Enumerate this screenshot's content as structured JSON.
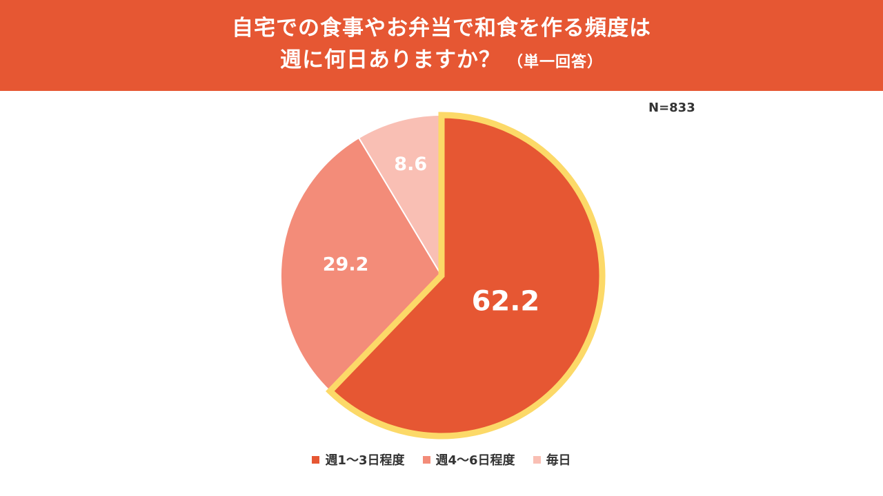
{
  "header": {
    "title_line1": "自宅での食事やお弁当で和食を作る頻度は",
    "title_line2": "週に何日ありますか？",
    "title_note": "（単一回答）",
    "background_color": "#e65733"
  },
  "sample_size": "N=833",
  "chart_data": {
    "type": "pie",
    "start_angle_deg": 0,
    "direction": "clockwise",
    "highlight_color": "#fcd968",
    "slices": [
      {
        "name": "週1～3日程度",
        "value": 62.2,
        "label": "62.2",
        "color": "#e65733",
        "highlighted": true
      },
      {
        "name": "週4～6日程度",
        "value": 29.2,
        "label": "29.2",
        "color": "#f38c79",
        "highlighted": false
      },
      {
        "name": "毎日",
        "value": 8.6,
        "label": "8.6",
        "color": "#f9bfb4",
        "highlighted": false
      }
    ],
    "legend_position": "bottom"
  }
}
